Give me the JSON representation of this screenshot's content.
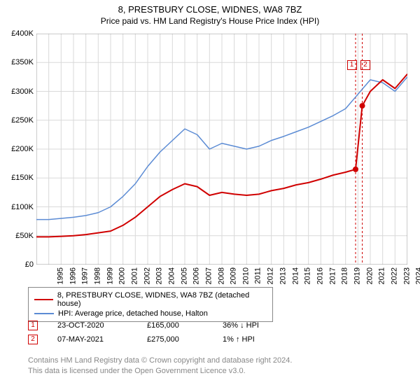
{
  "title": "8, PRESTBURY CLOSE, WIDNES, WA8 7BZ",
  "subtitle": "Price paid vs. HM Land Registry's House Price Index (HPI)",
  "chart": {
    "type": "line",
    "background_color": "#ffffff",
    "grid_color": "#d9d9d9",
    "xlim": [
      1995,
      2025
    ],
    "ylim": [
      0,
      400000
    ],
    "ytick_step": 50000,
    "yticks": [
      "£0",
      "£50K",
      "£100K",
      "£150K",
      "£200K",
      "£250K",
      "£300K",
      "£350K",
      "£400K"
    ],
    "xticks": [
      "1995",
      "1996",
      "1997",
      "1998",
      "1999",
      "2000",
      "2001",
      "2002",
      "2003",
      "2004",
      "2005",
      "2006",
      "2007",
      "2008",
      "2009",
      "2010",
      "2011",
      "2012",
      "2013",
      "2014",
      "2015",
      "2016",
      "2017",
      "2018",
      "2019",
      "2020",
      "2021",
      "2022",
      "2023",
      "2024",
      "2025"
    ],
    "series": [
      {
        "name": "property",
        "label": "8, PRESTBURY CLOSE, WIDNES, WA8 7BZ (detached house)",
        "color": "#d00000",
        "line_width": 2,
        "points": [
          [
            1995,
            48000
          ],
          [
            1996,
            48000
          ],
          [
            1997,
            49000
          ],
          [
            1998,
            50000
          ],
          [
            1999,
            52000
          ],
          [
            2000,
            55000
          ],
          [
            2001,
            58000
          ],
          [
            2002,
            68000
          ],
          [
            2003,
            82000
          ],
          [
            2004,
            100000
          ],
          [
            2005,
            118000
          ],
          [
            2006,
            130000
          ],
          [
            2007,
            140000
          ],
          [
            2008,
            135000
          ],
          [
            2009,
            120000
          ],
          [
            2010,
            125000
          ],
          [
            2011,
            122000
          ],
          [
            2012,
            120000
          ],
          [
            2013,
            122000
          ],
          [
            2014,
            128000
          ],
          [
            2015,
            132000
          ],
          [
            2016,
            138000
          ],
          [
            2017,
            142000
          ],
          [
            2018,
            148000
          ],
          [
            2019,
            155000
          ],
          [
            2020,
            160000
          ],
          [
            2020.81,
            165000
          ],
          [
            2021.35,
            275000
          ],
          [
            2022,
            300000
          ],
          [
            2023,
            320000
          ],
          [
            2024,
            305000
          ],
          [
            2025,
            330000
          ]
        ]
      },
      {
        "name": "hpi",
        "label": "HPI: Average price, detached house, Halton",
        "color": "#5b8bd4",
        "line_width": 1.5,
        "points": [
          [
            1995,
            78000
          ],
          [
            1996,
            78000
          ],
          [
            1997,
            80000
          ],
          [
            1998,
            82000
          ],
          [
            1999,
            85000
          ],
          [
            2000,
            90000
          ],
          [
            2001,
            100000
          ],
          [
            2002,
            118000
          ],
          [
            2003,
            140000
          ],
          [
            2004,
            170000
          ],
          [
            2005,
            195000
          ],
          [
            2006,
            215000
          ],
          [
            2007,
            235000
          ],
          [
            2008,
            225000
          ],
          [
            2009,
            200000
          ],
          [
            2010,
            210000
          ],
          [
            2011,
            205000
          ],
          [
            2012,
            200000
          ],
          [
            2013,
            205000
          ],
          [
            2014,
            215000
          ],
          [
            2015,
            222000
          ],
          [
            2016,
            230000
          ],
          [
            2017,
            238000
          ],
          [
            2018,
            248000
          ],
          [
            2019,
            258000
          ],
          [
            2020,
            270000
          ],
          [
            2021,
            295000
          ],
          [
            2022,
            320000
          ],
          [
            2023,
            315000
          ],
          [
            2024,
            300000
          ],
          [
            2025,
            325000
          ]
        ]
      }
    ],
    "markers": [
      {
        "num": "1",
        "x": 2020.81,
        "y": 165000,
        "vline_x": 2020.81,
        "label_x": 2020.5,
        "label_y": 345000
      },
      {
        "num": "2",
        "x": 2021.35,
        "y": 275000,
        "vline_x": 2021.35,
        "label_x": 2021.6,
        "label_y": 345000
      }
    ],
    "marker_color": "#d00000",
    "vline_dash": "3,3",
    "tick_fontsize": 11
  },
  "legend": {
    "items": [
      {
        "color": "#d00000",
        "label": "8, PRESTBURY CLOSE, WIDNES, WA8 7BZ (detached house)"
      },
      {
        "color": "#5b8bd4",
        "label": "HPI: Average price, detached house, Halton"
      }
    ]
  },
  "sales": [
    {
      "num": "1",
      "date": "23-OCT-2020",
      "price": "£165,000",
      "delta": "36% ↓ HPI"
    },
    {
      "num": "2",
      "date": "07-MAY-2021",
      "price": "£275,000",
      "delta": "1% ↑ HPI"
    }
  ],
  "attribution": {
    "line1": "Contains HM Land Registry data © Crown copyright and database right 2024.",
    "line2": "This data is licensed under the Open Government Licence v3.0."
  }
}
